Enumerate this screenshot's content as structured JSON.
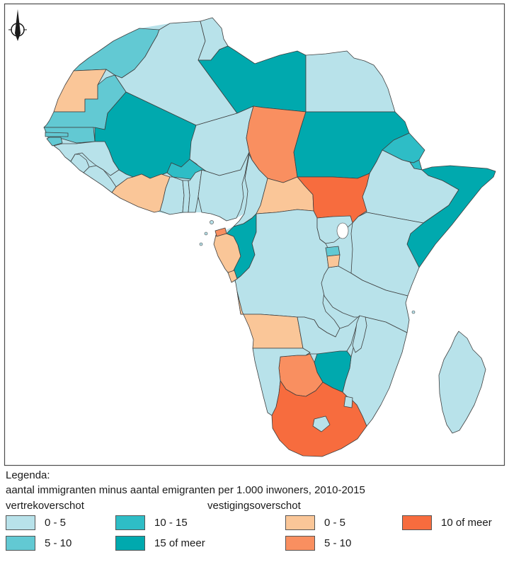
{
  "colors": {
    "background": "#ffffff",
    "frame_border": "#4d4d4d",
    "country_border": "#3f3f3f",
    "text": "#1a1a1a",
    "lake": "#ffffff"
  },
  "legend": {
    "title": "Legenda:",
    "subtitle": "aantal immigranten minus aantal emigranten per 1.000 inwoners, 2010-2015",
    "groups": [
      {
        "name": "vertrekoverschot",
        "classes": [
          {
            "id": "v0_5",
            "label": "0 - 5",
            "color": "#b8e2ea"
          },
          {
            "id": "v5_10",
            "label": "5 - 10",
            "color": "#62c9d3"
          },
          {
            "id": "v10_15",
            "label": "10 - 15",
            "color": "#2ebdc6"
          },
          {
            "id": "v15plus",
            "label": "15 of meer",
            "color": "#00a9ae"
          }
        ]
      },
      {
        "name": "vestigingsoverschot",
        "classes": [
          {
            "id": "s0_5",
            "label": "0 - 5",
            "color": "#fac698"
          },
          {
            "id": "s5_10",
            "label": "5 - 10",
            "color": "#f98f60"
          },
          {
            "id": "s10plus",
            "label": "10 of meer",
            "color": "#f76c3e"
          }
        ]
      }
    ]
  },
  "icons": {
    "compass": "north-arrow"
  },
  "map_data": {
    "type": "choropleth",
    "region": "Africa",
    "measure": "net migration per 1.000 inhabitants, 2010-2015",
    "class_colors": {
      "v0_5": "#b8e2ea",
      "v5_10": "#62c9d3",
      "v10_15": "#2ebdc6",
      "v15plus": "#00a9ae",
      "s0_5": "#fac698",
      "s5_10": "#f98f60",
      "s10plus": "#f76c3e"
    },
    "countries": [
      {
        "name": "Morocco",
        "slug": "morocco",
        "class": "v5_10"
      },
      {
        "name": "Western Sahara",
        "slug": "western-sahara",
        "class": "s0_5"
      },
      {
        "name": "Algeria",
        "slug": "algeria",
        "class": "v0_5"
      },
      {
        "name": "Tunisia",
        "slug": "tunisia",
        "class": "v0_5"
      },
      {
        "name": "Libya",
        "slug": "libya",
        "class": "v15plus"
      },
      {
        "name": "Egypt",
        "slug": "egypt",
        "class": "v0_5"
      },
      {
        "name": "Mauritania",
        "slug": "mauritania",
        "class": "v5_10"
      },
      {
        "name": "Mali",
        "slug": "mali",
        "class": "v15plus"
      },
      {
        "name": "Niger",
        "slug": "niger",
        "class": "v0_5"
      },
      {
        "name": "Chad",
        "slug": "chad",
        "class": "s5_10"
      },
      {
        "name": "Sudan",
        "slug": "sudan",
        "class": "v15plus"
      },
      {
        "name": "Eritrea",
        "slug": "eritrea",
        "class": "v10_15"
      },
      {
        "name": "Djibouti",
        "slug": "djibouti",
        "class": "v10_15"
      },
      {
        "name": "Ethiopia",
        "slug": "ethiopia",
        "class": "v0_5"
      },
      {
        "name": "Somalia",
        "slug": "somalia",
        "class": "v15plus"
      },
      {
        "name": "Senegal",
        "slug": "senegal",
        "class": "v5_10"
      },
      {
        "name": "Guinea",
        "slug": "guinea",
        "class": "v0_5"
      },
      {
        "name": "Sierra Leone",
        "slug": "sierra-leone",
        "class": "v0_5"
      },
      {
        "name": "Liberia",
        "slug": "liberia",
        "class": "v0_5"
      },
      {
        "name": "Ivory Coast",
        "slug": "cote-divoire",
        "class": "s0_5"
      },
      {
        "name": "Burkina Faso",
        "slug": "burkina-faso",
        "class": "v10_15"
      },
      {
        "name": "Ghana",
        "slug": "ghana",
        "class": "v0_5"
      },
      {
        "name": "Togo",
        "slug": "togo",
        "class": "v0_5"
      },
      {
        "name": "Benin",
        "slug": "benin",
        "class": "v0_5"
      },
      {
        "name": "Nigeria",
        "slug": "nigeria",
        "class": "v0_5"
      },
      {
        "name": "Cameroon",
        "slug": "cameroon",
        "class": "v0_5"
      },
      {
        "name": "Central African Republic",
        "slug": "central-african-republic",
        "class": "s0_5"
      },
      {
        "name": "South Sudan",
        "slug": "south-sudan",
        "class": "s10plus"
      },
      {
        "name": "Equatorial Guinea",
        "slug": "equatorial-guinea",
        "class": "s5_10"
      },
      {
        "name": "Gabon",
        "slug": "gabon",
        "class": "s0_5"
      },
      {
        "name": "Congo",
        "slug": "congo",
        "class": "v15plus"
      },
      {
        "name": "DR Congo",
        "slug": "dr-congo",
        "class": "v0_5"
      },
      {
        "name": "Uganda",
        "slug": "uganda",
        "class": "v0_5"
      },
      {
        "name": "Kenya",
        "slug": "kenya",
        "class": "v0_5"
      },
      {
        "name": "Tanzania",
        "slug": "tanzania",
        "class": "v0_5"
      },
      {
        "name": "Angola",
        "slug": "angola",
        "class": "s0_5"
      },
      {
        "name": "Cabinda",
        "slug": "cabinda",
        "class": "s0_5"
      },
      {
        "name": "Zambia",
        "slug": "zambia",
        "class": "v0_5"
      },
      {
        "name": "Mozambique",
        "slug": "mozambique",
        "class": "v0_5"
      },
      {
        "name": "Zimbabwe",
        "slug": "zimbabwe",
        "class": "v15plus"
      },
      {
        "name": "Botswana",
        "slug": "botswana",
        "class": "s5_10"
      },
      {
        "name": "Namibia",
        "slug": "namibia",
        "class": "v0_5"
      },
      {
        "name": "South Africa",
        "slug": "south-africa",
        "class": "s10plus"
      },
      {
        "name": "Madagascar",
        "slug": "madagascar",
        "class": "v0_5"
      },
      {
        "name": "Gambia",
        "slug": "gambia",
        "class": "v5_10"
      },
      {
        "name": "Guinea-Bissau",
        "slug": "guinea-bissau",
        "class": "v5_10"
      },
      {
        "name": "Rwanda",
        "slug": "rwanda",
        "class": "v5_10"
      },
      {
        "name": "Burundi",
        "slug": "burundi",
        "class": "s0_5"
      },
      {
        "name": "Malawi",
        "slug": "malawi",
        "class": "v0_5"
      },
      {
        "name": "Lesotho",
        "slug": "lesotho",
        "class": "v0_5"
      },
      {
        "name": "Swaziland",
        "slug": "swaziland",
        "class": "v0_5"
      }
    ]
  }
}
